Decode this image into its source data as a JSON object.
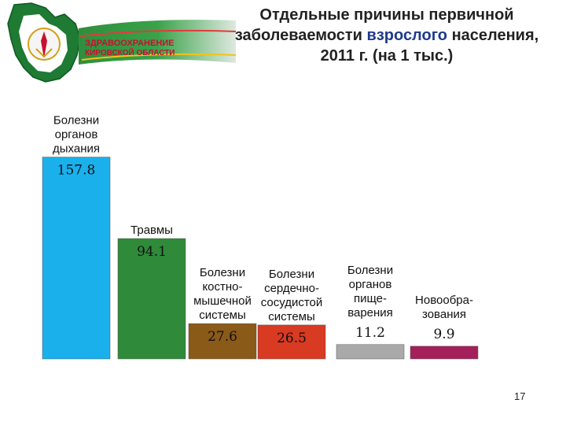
{
  "header": {
    "logo_text_line1": "ЗДРАВООХРАНЕНИЕ",
    "logo_text_line2": "КИРОВСКОЙ ОБЛАСТИ",
    "title_part1": "Отдельные причины первичной заболеваемости ",
    "title_highlight": "взрослого",
    "title_part2": " населения, 2011 г. (на 1 тыс.)"
  },
  "chart_data": {
    "type": "bar",
    "categories": [
      "Болезни органов дыхания",
      "Травмы",
      "Болезни костно-мышечной системы",
      "Болезни сердечно-сосудистой системы",
      "Болезни органов пище-варения",
      "Новообра-зования"
    ],
    "category_lines": [
      [
        "Болезни",
        "органов",
        "дыхания"
      ],
      [
        "Травмы"
      ],
      [
        "Болезни",
        "костно-",
        "мышечной",
        "системы"
      ],
      [
        "Болезни",
        "сердечно-",
        "сосудистой",
        "системы"
      ],
      [
        "Болезни",
        "органов",
        "пище-",
        "варения"
      ],
      [
        "Новообра-",
        "зования"
      ]
    ],
    "value_labels": [
      "157.8",
      "94.1",
      "27.6",
      "26.5",
      "11.2",
      "9.9"
    ],
    "values": [
      157.8,
      94.1,
      27.6,
      26.5,
      11.2,
      9.9
    ],
    "colors": [
      "#1ab0ec",
      "#2f8a3a",
      "#8a5a18",
      "#d83a22",
      "#a9a9a9",
      "#a3205a"
    ],
    "ylim": [
      0,
      160
    ],
    "grid": false,
    "legend": "none"
  },
  "footer": {
    "page_number": "17"
  }
}
